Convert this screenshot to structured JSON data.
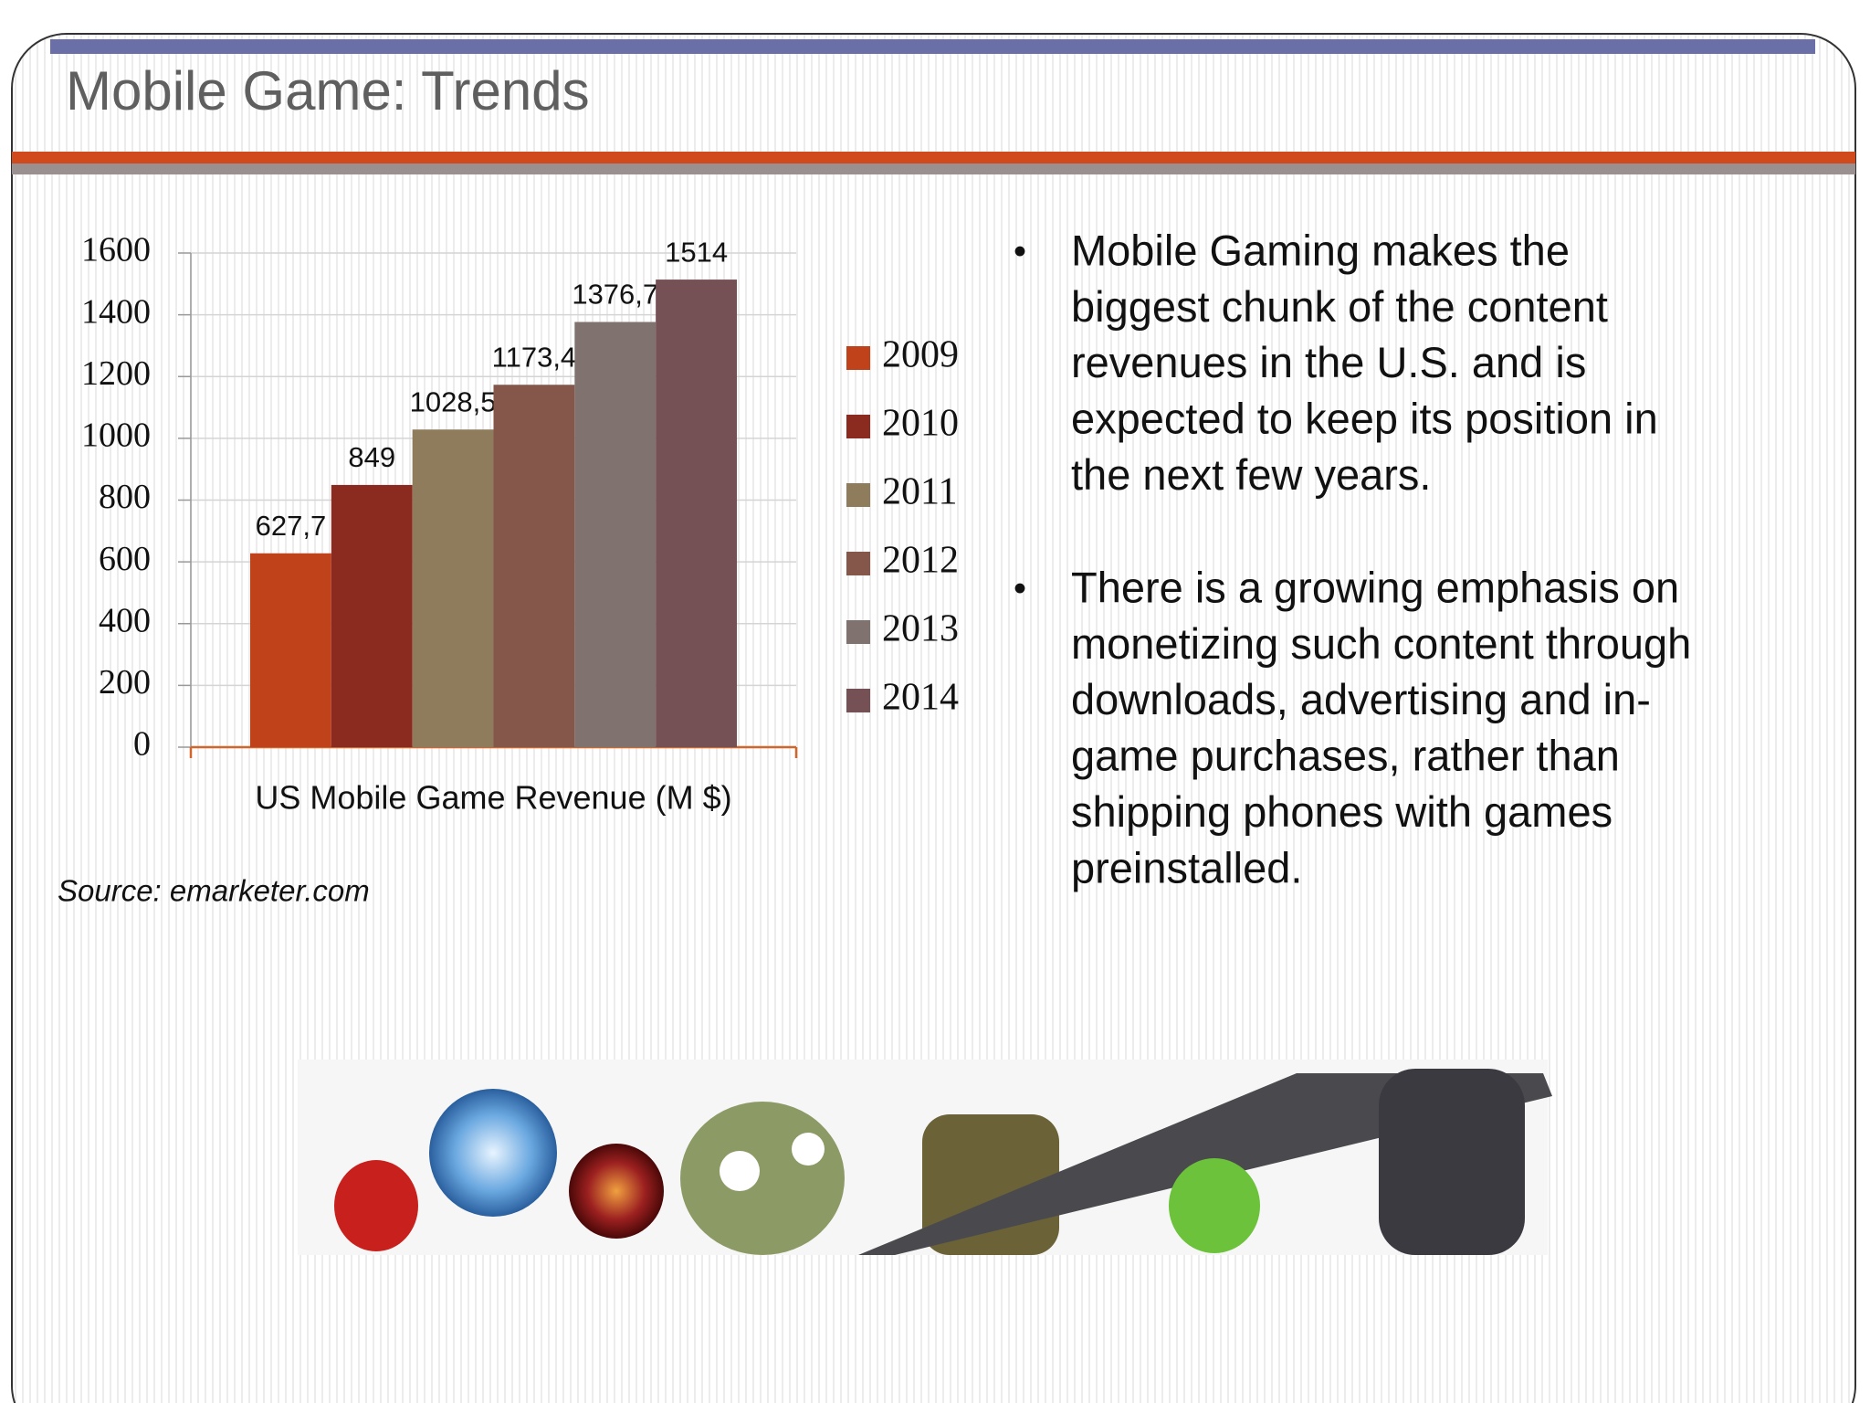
{
  "title": "Mobile Game: Trends",
  "chart_data": {
    "type": "bar",
    "categories": [
      "US Mobile Game Revenue (M $)"
    ],
    "series": [
      {
        "name": "2009",
        "color": "#c0421a",
        "values": [
          627.7
        ],
        "value_labels": [
          "627,7"
        ]
      },
      {
        "name": "2010",
        "color": "#8b2a1f",
        "values": [
          849
        ]
      },
      {
        "name": "2011",
        "color": "#8e7c5c",
        "values": [
          1028.5
        ],
        "value_labels": [
          "1028,5"
        ]
      },
      {
        "name": "2012",
        "color": "#85574a",
        "values": [
          1173.4
        ],
        "value_labels": [
          "1173,4"
        ]
      },
      {
        "name": "2013",
        "color": "#80726f",
        "values": [
          1376.7
        ],
        "value_labels": [
          "1376,7"
        ]
      },
      {
        "name": "2014",
        "color": "#755054",
        "values": [
          1514
        ]
      }
    ],
    "ylim": [
      0,
      1600
    ],
    "yticks": [
      0,
      200,
      400,
      600,
      800,
      1000,
      1200,
      1400,
      1600
    ],
    "grid": true,
    "legend": "right"
  },
  "source": "Source: emarketer.com",
  "bullets": [
    [
      "Mobile Gaming makes the",
      "biggest chunk of the content",
      "revenues in the U.S. and is",
      "expected to keep its position in",
      "the next few years."
    ],
    [
      "There is a growing emphasis on",
      "monetizing such content through",
      "downloads, advertising and in-",
      "game purchases, rather than",
      "shipping phones with games",
      "preinstalled."
    ]
  ]
}
